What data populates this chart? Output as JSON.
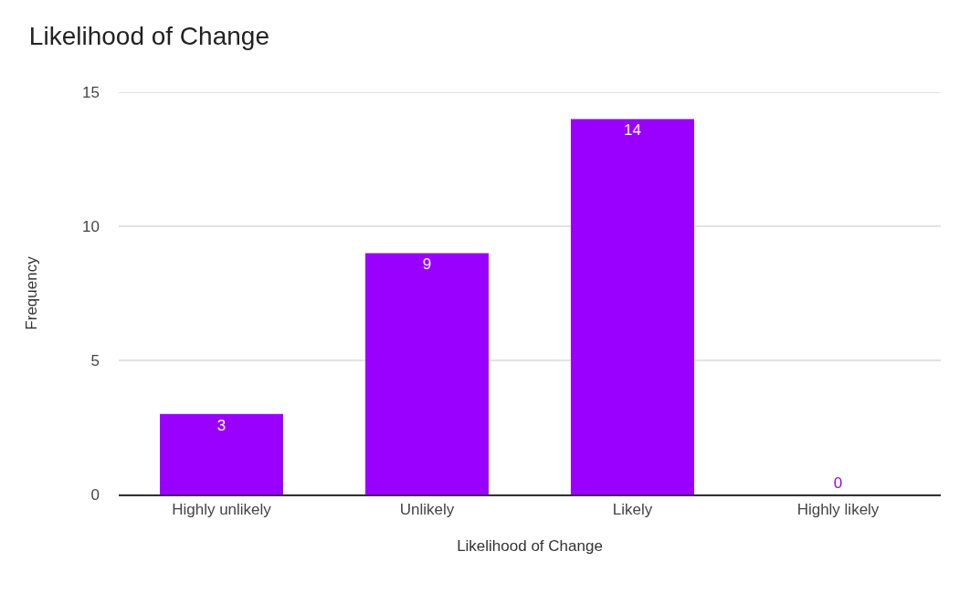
{
  "chart_data": {
    "type": "bar",
    "title": "Likelihood of Change",
    "xlabel": "Likelihood of Change",
    "ylabel": "Frequency",
    "categories": [
      "Highly unlikely",
      "Unlikely",
      "Likely",
      "Highly likely"
    ],
    "values": [
      3,
      9,
      14,
      0
    ],
    "color": "#9900ff",
    "ylim": [
      0,
      15
    ],
    "yticks": [
      0,
      5,
      10,
      15
    ],
    "grid": "y",
    "data_labels": true
  }
}
